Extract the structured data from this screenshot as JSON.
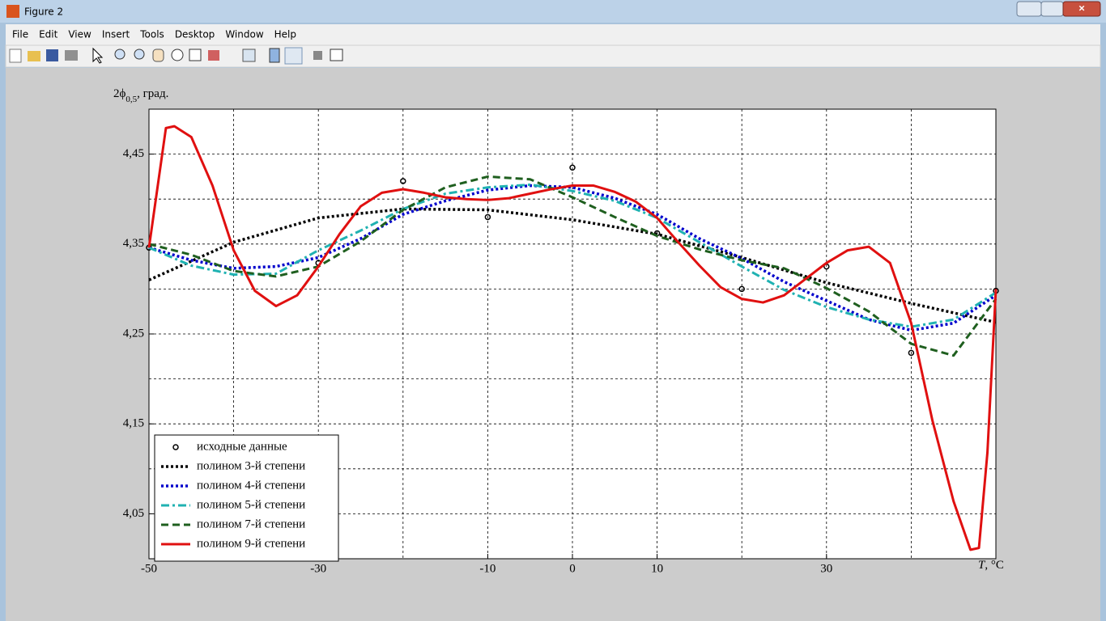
{
  "window": {
    "title": "Figure 2",
    "menu": [
      "File",
      "Edit",
      "View",
      "Insert",
      "Tools",
      "Desktop",
      "Window",
      "Help"
    ]
  },
  "chart_data": {
    "type": "line",
    "ylabel": {
      "main": "2ϕ",
      "sub": "0,5",
      "rest": ", град."
    },
    "xlabel": {
      "main": "T",
      "rest": ", °C"
    },
    "xlim": [
      -50,
      50
    ],
    "ylim": [
      4.0,
      4.5
    ],
    "xticks": [
      -50,
      -30,
      -10,
      0,
      10,
      30
    ],
    "xgrid": [
      -50,
      -40,
      -30,
      -20,
      -10,
      0,
      10,
      20,
      30,
      40,
      50
    ],
    "yticks": [
      {
        "value": 4.05,
        "label": "4,05"
      },
      {
        "value": 4.15,
        "label": "4,15"
      },
      {
        "value": 4.25,
        "label": "4,25"
      },
      {
        "value": 4.35,
        "label": "4,35"
      },
      {
        "value": 4.45,
        "label": "4,45"
      }
    ],
    "ygrid": [
      4.05,
      4.1,
      4.15,
      4.2,
      4.25,
      4.3,
      4.35,
      4.4,
      4.45
    ],
    "grid": true,
    "legend_position": "lower-left",
    "series": [
      {
        "name": "исходные данные",
        "color": "#000000",
        "marker": "o",
        "linestyle": "none",
        "x": [
          -50,
          -30,
          -20,
          -10,
          0,
          10,
          20,
          30,
          40,
          50
        ],
        "values": [
          4.346,
          4.329,
          4.42,
          4.38,
          4.435,
          4.362,
          4.3,
          4.325,
          4.229,
          4.298
        ]
      },
      {
        "name": "полином 3-й степени",
        "color": "#000000",
        "linestyle": ":",
        "x": [
          -50,
          -40,
          -30,
          -20,
          -10,
          0,
          10,
          20,
          30,
          40,
          50
        ],
        "values": [
          4.31,
          4.352,
          4.379,
          4.389,
          4.388,
          4.377,
          4.361,
          4.335,
          4.307,
          4.284,
          4.263
        ]
      },
      {
        "name": "полином 4-й степени",
        "color": "#0000cc",
        "linestyle": ":",
        "x": [
          -50,
          -45,
          -40,
          -35,
          -30,
          -25,
          -20,
          -15,
          -10,
          -5,
          0,
          5,
          10,
          15,
          20,
          25,
          30,
          35,
          40,
          45,
          50
        ],
        "values": [
          4.346,
          4.332,
          4.323,
          4.325,
          4.335,
          4.356,
          4.383,
          4.398,
          4.41,
          4.415,
          4.413,
          4.401,
          4.383,
          4.356,
          4.334,
          4.308,
          4.287,
          4.266,
          4.254,
          4.262,
          4.293
        ]
      },
      {
        "name": "полином 5-й степени",
        "color": "#20b2b2",
        "linestyle": "-.",
        "x": [
          -50,
          -45,
          -40,
          -35,
          -30,
          -25,
          -20,
          -15,
          -10,
          -5,
          0,
          5,
          10,
          15,
          20,
          25,
          30,
          35,
          40,
          45,
          50
        ],
        "values": [
          4.346,
          4.326,
          4.316,
          4.317,
          4.343,
          4.365,
          4.389,
          4.406,
          4.413,
          4.416,
          4.409,
          4.398,
          4.379,
          4.352,
          4.325,
          4.299,
          4.28,
          4.266,
          4.258,
          4.266,
          4.296
        ]
      },
      {
        "name": "полином 7-й степени",
        "color": "#1f5f1f",
        "linestyle": "--",
        "x": [
          -50,
          -45,
          -40,
          -35,
          -30,
          -25,
          -20,
          -15,
          -10,
          -5,
          0,
          5,
          10,
          15,
          20,
          25,
          30,
          35,
          40,
          45,
          50
        ],
        "values": [
          4.35,
          4.338,
          4.32,
          4.314,
          4.325,
          4.353,
          4.388,
          4.413,
          4.425,
          4.422,
          4.402,
          4.38,
          4.359,
          4.344,
          4.332,
          4.323,
          4.301,
          4.275,
          4.239,
          4.226,
          4.289
        ]
      },
      {
        "name": "полином 9-й степени",
        "color": "#e01010",
        "linestyle": "-",
        "x": [
          -50,
          -48,
          -47,
          -45,
          -42.5,
          -40,
          -37.5,
          -35,
          -32.5,
          -30,
          -27.5,
          -25,
          -22.5,
          -20,
          -17.5,
          -15,
          -12.5,
          -10,
          -7.5,
          -5,
          -2.5,
          0,
          2.5,
          5,
          7.5,
          10,
          12.5,
          15,
          17.5,
          20,
          22.5,
          25,
          27.5,
          30,
          32.5,
          35,
          37.5,
          40,
          42.5,
          45,
          47,
          48,
          49,
          50
        ],
        "values": [
          4.346,
          4.479,
          4.481,
          4.469,
          4.415,
          4.343,
          4.298,
          4.281,
          4.293,
          4.325,
          4.361,
          4.392,
          4.407,
          4.411,
          4.407,
          4.402,
          4.4,
          4.399,
          4.401,
          4.406,
          4.411,
          4.415,
          4.415,
          4.408,
          4.397,
          4.379,
          4.352,
          4.326,
          4.302,
          4.289,
          4.285,
          4.293,
          4.311,
          4.329,
          4.343,
          4.347,
          4.329,
          4.262,
          4.154,
          4.064,
          4.01,
          4.012,
          4.118,
          4.3
        ]
      }
    ]
  }
}
